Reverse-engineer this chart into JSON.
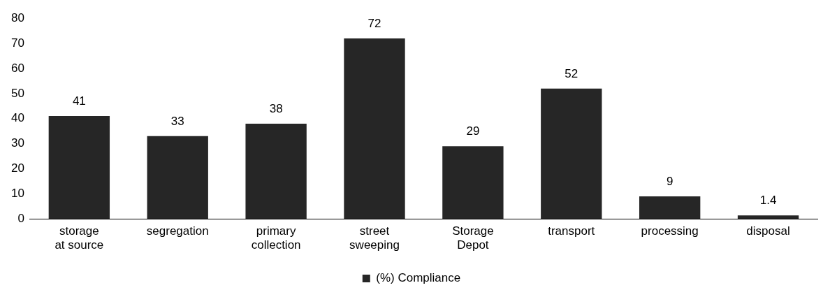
{
  "chart_data": {
    "type": "bar",
    "categories": [
      "storage at source",
      "segregation",
      "primary collection",
      "street sweeping",
      "Storage Depot",
      "transport",
      "processing",
      "disposal"
    ],
    "series": [
      {
        "name": "(%) Compliance",
        "color": "#262626",
        "values": [
          41,
          33,
          38,
          72,
          29,
          52,
          9,
          1.4
        ]
      }
    ],
    "ylim": [
      0,
      80
    ],
    "yticks": [
      0,
      10,
      20,
      30,
      40,
      50,
      60,
      70,
      80
    ],
    "grid": false,
    "legend": "bottom",
    "data_labels": true
  }
}
